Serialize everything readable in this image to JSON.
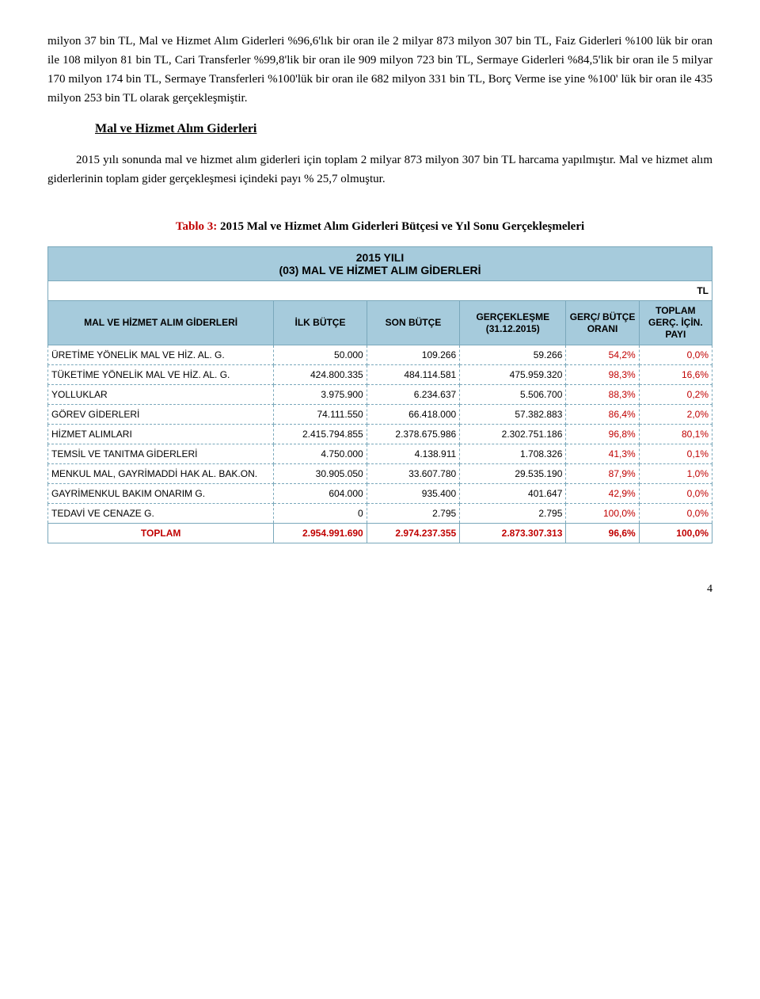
{
  "para1": "milyon 37 bin TL, Mal ve Hizmet Alım Giderleri %96,6'lık bir oran ile 2 milyar 873 milyon 307 bin TL, Faiz Giderleri %100 lük bir oran ile 108 milyon 81 bin TL, Cari Transferler %99,8'lik bir oran ile 909 milyon 723 bin TL, Sermaye Giderleri %84,5'lik bir oran ile 5 milyar 170 milyon 174 bin TL, Sermaye Transferleri %100'lük bir oran ile 682 milyon 331 bin TL, Borç Verme ise yine %100' lük bir oran ile 435 milyon 253 bin TL olarak gerçekleşmiştir.",
  "subhead": "Mal ve Hizmet Alım Giderleri",
  "para2": "2015 yılı sonunda mal ve hizmet alım giderleri için toplam 2 milyar 873 milyon 307 bin TL harcama yapılmıştır. Mal ve hizmet alım giderlerinin toplam gider gerçekleşmesi içindeki payı % 25,7 olmuştur.",
  "caption_label": "Tablo 3:",
  "caption_text": " 2015 Mal ve Hizmet Alım Giderleri Bütçesi ve Yıl Sonu Gerçekleşmeleri",
  "table": {
    "title_line1": "2015 YILI",
    "title_line2": "(03) MAL VE HİZMET ALIM GİDERLERİ",
    "tl_label": "TL",
    "columns": [
      "MAL VE HİZMET ALIM GİDERLERİ",
      "İLK BÜTÇE",
      "SON BÜTÇE",
      "GERÇEKLEŞME (31.12.2015)",
      "GERÇ/ BÜTÇE ORANI",
      "TOPLAM GERÇ. İÇİN. PAYI"
    ],
    "rows": [
      {
        "label": "ÜRETİME YÖNELİK MAL VE HİZ. AL. G.",
        "ilk": "50.000",
        "son": "109.266",
        "gerc": "59.266",
        "oran": "54,2%",
        "pay": "0,0%"
      },
      {
        "label": "TÜKETİME YÖNELİK MAL VE HİZ. AL. G.",
        "ilk": "424.800.335",
        "son": "484.114.581",
        "gerc": "475.959.320",
        "oran": "98,3%",
        "pay": "16,6%"
      },
      {
        "label": "YOLLUKLAR",
        "ilk": "3.975.900",
        "son": "6.234.637",
        "gerc": "5.506.700",
        "oran": "88,3%",
        "pay": "0,2%"
      },
      {
        "label": "GÖREV GİDERLERİ",
        "ilk": "74.111.550",
        "son": "66.418.000",
        "gerc": "57.382.883",
        "oran": "86,4%",
        "pay": "2,0%"
      },
      {
        "label": "HİZMET ALIMLARI",
        "ilk": "2.415.794.855",
        "son": "2.378.675.986",
        "gerc": "2.302.751.186",
        "oran": "96,8%",
        "pay": "80,1%"
      },
      {
        "label": "TEMSİL VE TANITMA GİDERLERİ",
        "ilk": "4.750.000",
        "son": "4.138.911",
        "gerc": "1.708.326",
        "oran": "41,3%",
        "pay": "0,1%"
      },
      {
        "label": "MENKUL MAL, GAYRİMADDİ HAK AL. BAK.ON.",
        "ilk": "30.905.050",
        "son": "33.607.780",
        "gerc": "29.535.190",
        "oran": "87,9%",
        "pay": "1,0%"
      },
      {
        "label": "GAYRİMENKUL BAKIM ONARIM G.",
        "ilk": "604.000",
        "son": "935.400",
        "gerc": "401.647",
        "oran": "42,9%",
        "pay": "0,0%"
      },
      {
        "label": "TEDAVİ VE CENAZE G.",
        "ilk": "0",
        "son": "2.795",
        "gerc": "2.795",
        "oran": "100,0%",
        "pay": "0,0%"
      }
    ],
    "total": {
      "label": "TOPLAM",
      "ilk": "2.954.991.690",
      "son": "2.974.237.355",
      "gerc": "2.873.307.313",
      "oran": "96,6%",
      "pay": "100,0%"
    }
  },
  "page_number": "4"
}
